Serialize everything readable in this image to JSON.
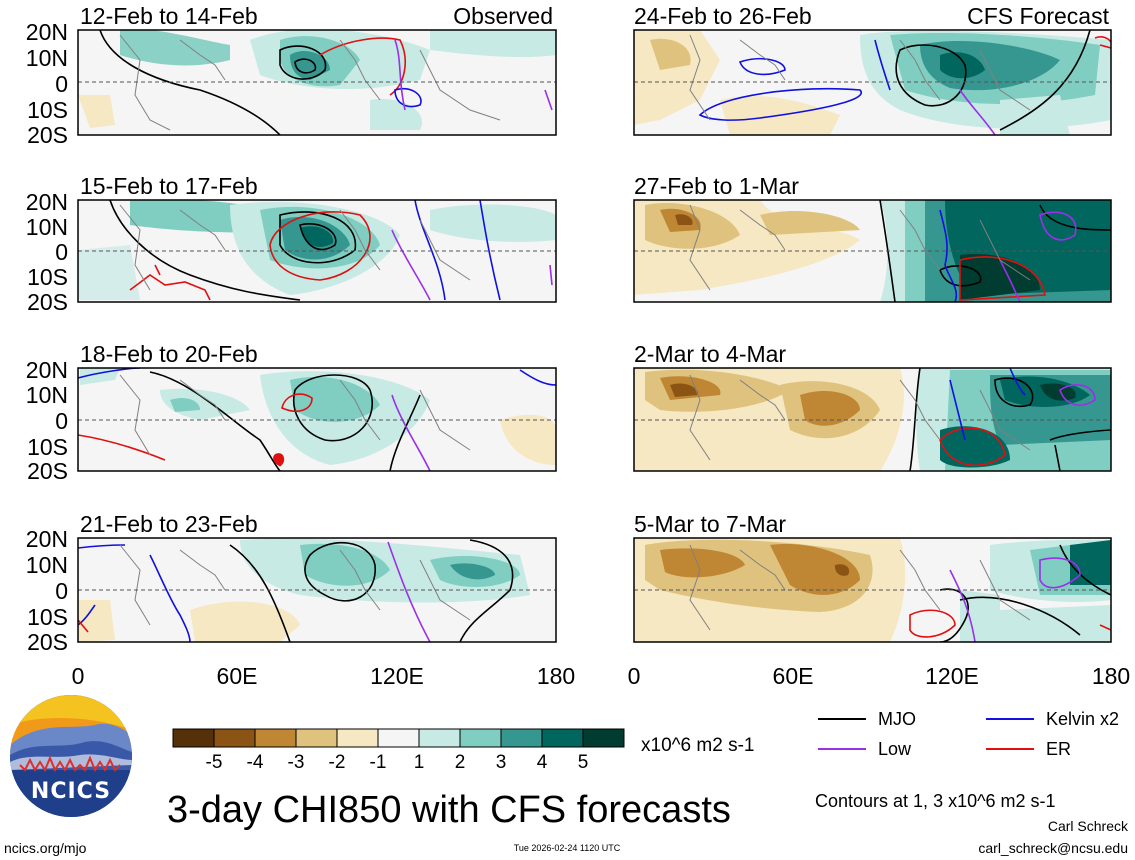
{
  "footer": {
    "url": "ncics.org/mjo",
    "timestamp": "Tue 2026-02-24 1120 UTC",
    "author": "Carl Schreck",
    "email": "carl_schreck@ncsu.edu"
  },
  "title": "3-day CHI850 with CFS forecasts",
  "logo": {
    "text": "NCICS"
  },
  "colorbar": {
    "units": "x10^6 m2 s-1",
    "tick_labels": [
      "-5",
      "-4",
      "-3",
      "-2",
      "-1",
      "1",
      "2",
      "3",
      "4",
      "5"
    ],
    "colors": [
      "#563008",
      "#8b5414",
      "#bf8634",
      "#dfc27d",
      "#f6e8c3",
      "#f5f5f5",
      "#c7eae5",
      "#80cdc1",
      "#35978f",
      "#01665e",
      "#003c30"
    ]
  },
  "legend": {
    "items": [
      {
        "label": "MJO",
        "color": "#000000"
      },
      {
        "label": "Kelvin x2",
        "color": "#1010e0"
      },
      {
        "label": "Low",
        "color": "#9a30e8"
      },
      {
        "label": "ER",
        "color": "#e01010"
      }
    ],
    "contour_note": "Contours at 1, 3 x10^6 m2 s-1"
  },
  "map_axes": {
    "lat_labels": [
      "20N",
      "10N",
      "0",
      "10S",
      "20S"
    ],
    "lon_labels": [
      "0",
      "60E",
      "120E",
      "180"
    ]
  },
  "panels": [
    {
      "label": "12-Feb to 14-Feb",
      "tag": "Observed"
    },
    {
      "label": "15-Feb to 17-Feb",
      "tag": ""
    },
    {
      "label": "18-Feb to 20-Feb",
      "tag": ""
    },
    {
      "label": "21-Feb to 23-Feb",
      "tag": ""
    },
    {
      "label": "24-Feb to 26-Feb",
      "tag": "CFS Forecast"
    },
    {
      "label": "27-Feb to 1-Mar",
      "tag": ""
    },
    {
      "label": "2-Mar to 4-Mar",
      "tag": ""
    },
    {
      "label": "5-Mar to 7-Mar",
      "tag": ""
    }
  ]
}
